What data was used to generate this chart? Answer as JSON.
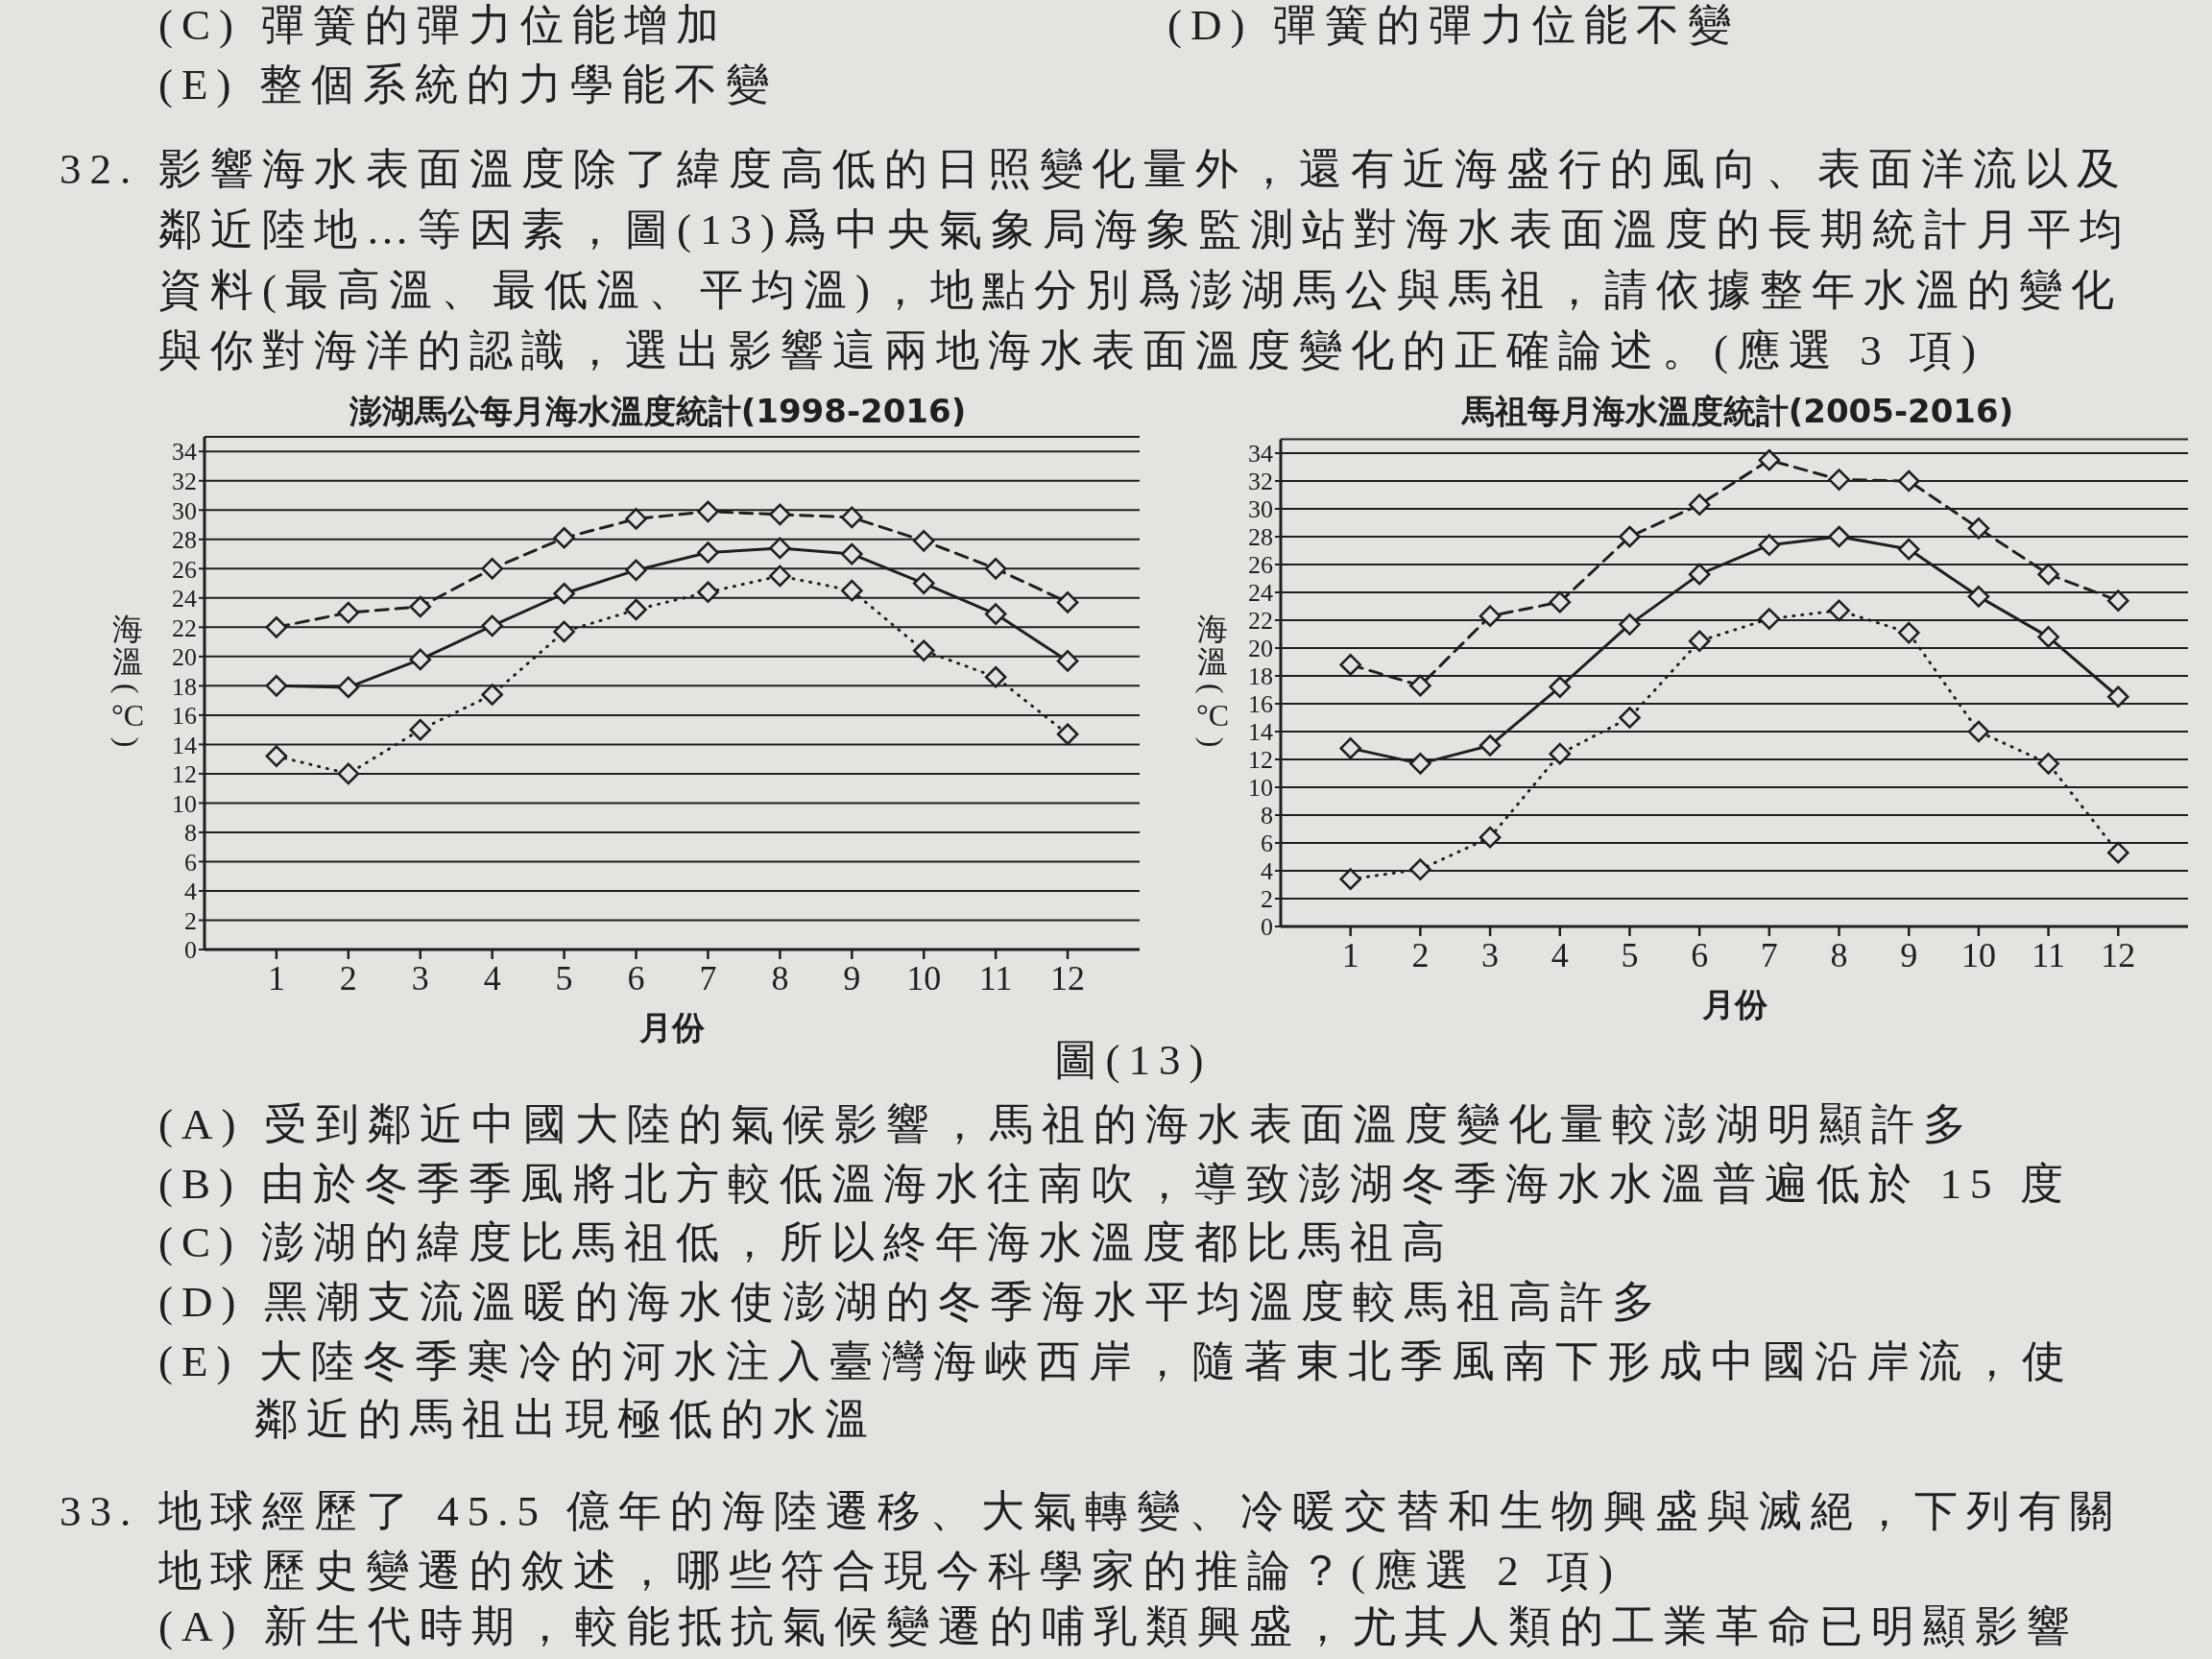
{
  "chart_data": [
    {
      "type": "line",
      "title": "澎湖馬公每月海水溫度統計(1998-2016)",
      "xlabel": "月份",
      "ylabel": "海溫(°C)",
      "x": [
        1,
        2,
        3,
        4,
        5,
        6,
        7,
        8,
        9,
        10,
        11,
        12
      ],
      "xlim": [
        0,
        13
      ],
      "xticks": [
        1,
        2,
        3,
        4,
        5,
        6,
        7,
        8,
        9,
        10,
        11,
        12
      ],
      "ylim": [
        0,
        35
      ],
      "yticks": [
        0,
        2,
        4,
        6,
        8,
        10,
        12,
        14,
        16,
        18,
        20,
        22,
        24,
        26,
        28,
        30,
        32,
        34
      ],
      "grid": "y",
      "marker": "diamond",
      "series": [
        {
          "color": "#1f1f1f",
          "line_style": "dashed",
          "values": [
            22,
            23,
            23.4,
            26,
            28.1,
            29.4,
            29.9,
            29.7,
            29.5,
            27.9,
            26,
            23.7
          ]
        },
        {
          "color": "#1f1f1f",
          "line_style": "solid",
          "values": [
            18,
            17.9,
            19.8,
            22.1,
            24.3,
            25.9,
            27.1,
            27.4,
            27,
            25,
            22.9,
            19.7
          ]
        },
        {
          "color": "#1f1f1f",
          "line_style": "dotted",
          "values": [
            13.2,
            12,
            15,
            17.4,
            21.7,
            23.2,
            24.4,
            25.5,
            24.5,
            20.4,
            18.6,
            14.7
          ]
        }
      ],
      "annotations": [
        "(C) 彈簧的彈力位能增加",
        "(D) 彈簧的彈力位能不變",
        "(E) 整個系統的力學能不變",
        "32.",
        "影響海水表面溫度除了緯度高低的日照變化量外，還有近海盛行的風向、表面洋流以及",
        "鄰近陸地…等因素，圖(13)爲中央氣象局海象監測站對海水表面溫度的長期統計月平均",
        "資料(最高溫、最低溫、平均溫)，地點分別爲澎湖馬公與馬祖，請依據整年水溫的變化",
        "與你對海洋的認識，選出影響這兩地海水表面溫度變化的正確論述。(應選 3 項)"
      ]
    },
    {
      "type": "line",
      "title": "馬祖每月海水溫度統計(2005-2016)",
      "xlabel": "月份",
      "ylabel": "海溫(°C)",
      "x": [
        1,
        2,
        3,
        4,
        5,
        6,
        7,
        8,
        9,
        10,
        11,
        12
      ],
      "xlim": [
        0,
        13
      ],
      "xticks": [
        1,
        2,
        3,
        4,
        5,
        6,
        7,
        8,
        9,
        10,
        11,
        12
      ],
      "ylim": [
        0,
        35
      ],
      "yticks": [
        0,
        2,
        4,
        6,
        8,
        10,
        12,
        14,
        16,
        18,
        20,
        22,
        24,
        26,
        28,
        30,
        32,
        34
      ],
      "grid": "y",
      "marker": "diamond",
      "series": [
        {
          "color": "#1f1f1f",
          "line_style": "dashed",
          "values": [
            18.8,
            17.3,
            22.3,
            23.3,
            28,
            30.3,
            33.5,
            32.1,
            32,
            28.6,
            25.3,
            23.4
          ]
        },
        {
          "color": "#1f1f1f",
          "line_style": "solid",
          "values": [
            12.8,
            11.7,
            13,
            17.2,
            21.7,
            25.3,
            27.4,
            28,
            27.1,
            23.7,
            20.8,
            16.5
          ]
        },
        {
          "color": "#1f1f1f",
          "line_style": "dotted",
          "values": [
            3.4,
            4.1,
            6.4,
            12.4,
            15,
            20.5,
            22.1,
            22.7,
            21.1,
            14,
            11.7,
            5.3
          ]
        }
      ],
      "annotations": [
        "圖(13)",
        "(A) 受到鄰近中國大陸的氣候影響，馬祖的海水表面溫度變化量較澎湖明顯許多",
        "(B) 由於冬季季風將北方較低溫海水往南吹，導致澎湖冬季海水水溫普遍低於 15 度",
        "(C) 澎湖的緯度比馬祖低，所以終年海水溫度都比馬祖高",
        "(D) 黑潮支流溫暖的海水使澎湖的冬季海水平均溫度較馬祖高許多",
        "(E) 大陸冬季寒冷的河水注入臺灣海峽西岸，隨著東北季風南下形成中國沿岸流，使",
        "鄰近的馬祖出現極低的水溫",
        "33.",
        "地球經歷了 45.5 億年的海陸遷移、大氣轉變、冷暖交替和生物興盛與滅絕，下列有關",
        "地球歷史變遷的敘述，哪些符合現今科學家的推論？(應選 2 項)",
        "(A) 新生代時期，較能抵抗氣候變遷的哺乳類興盛，尤其人類的工業革命已明顯影響"
      ]
    }
  ]
}
